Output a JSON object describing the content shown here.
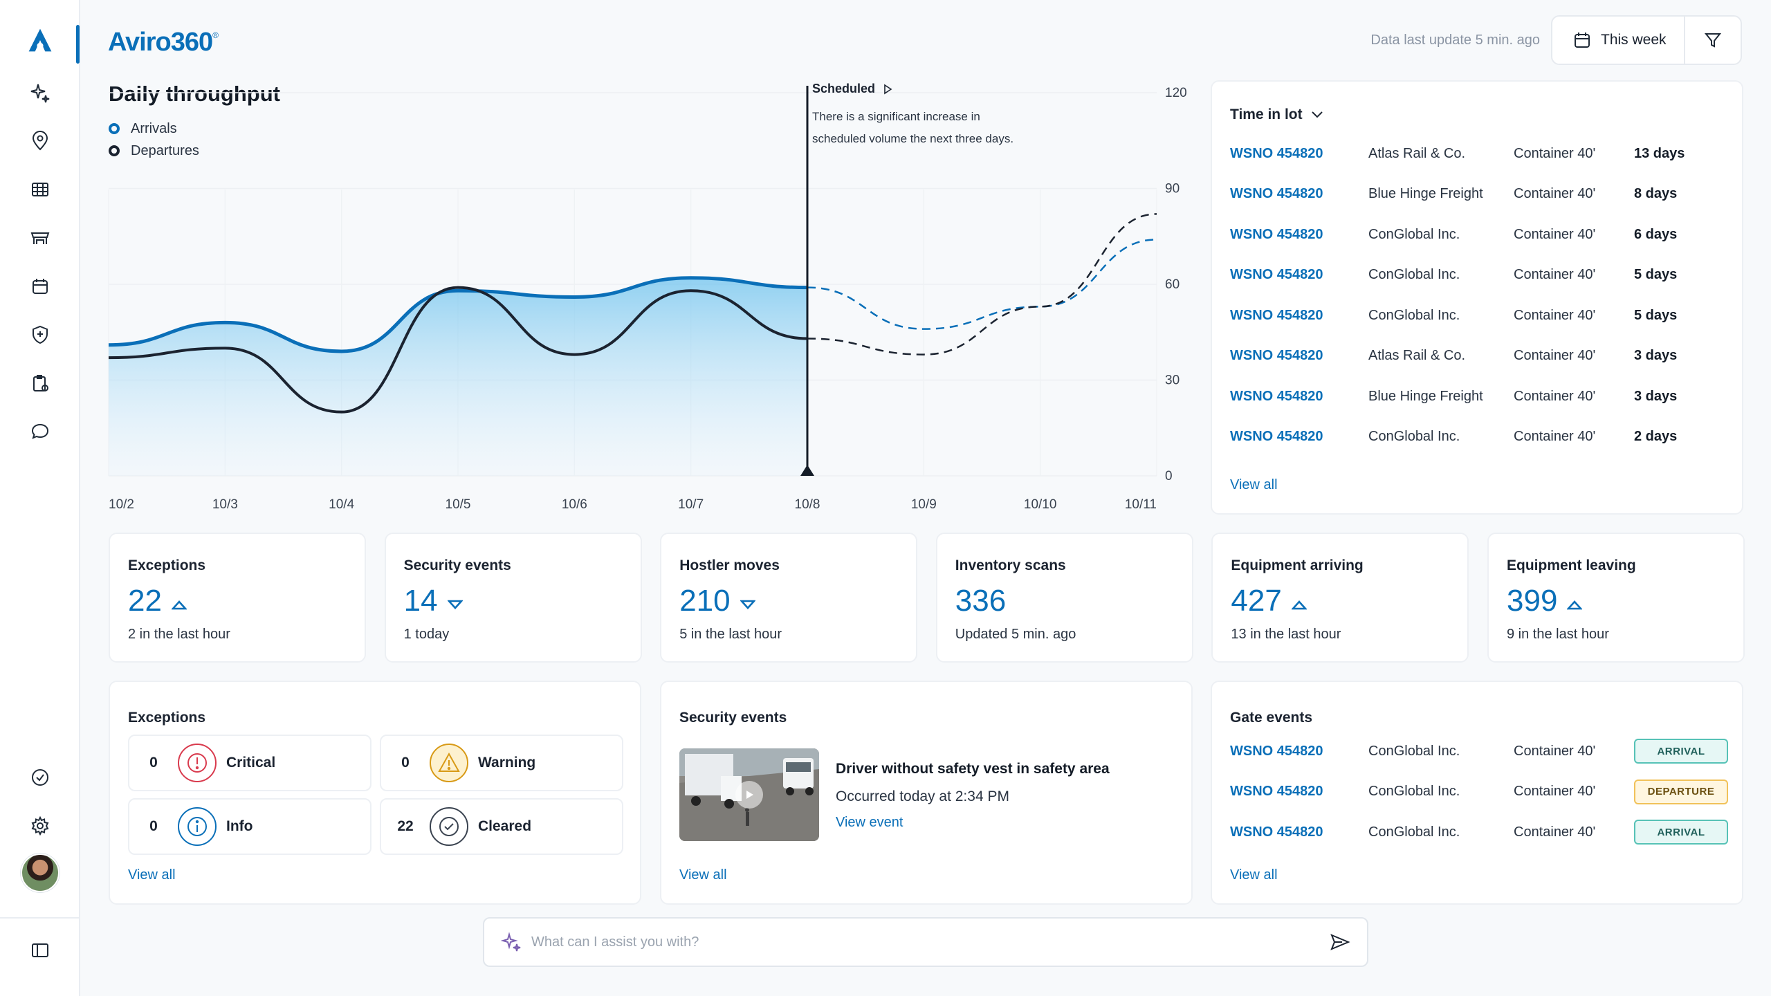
{
  "brand": {
    "name": "Aviro360",
    "mark": "®"
  },
  "header": {
    "last_update": "Data last update 5 min. ago",
    "period_label": "This week"
  },
  "sidebar": {
    "icons": [
      "logo-icon",
      "sparkle-icon",
      "location-pin-icon",
      "table-icon",
      "warehouse-icon",
      "calendar-icon",
      "shield-icon",
      "clipboard-icon",
      "chat-icon",
      "check-circle-icon",
      "settings-icon",
      "sidebar-toggle-icon"
    ],
    "accent": "#0a6fb8"
  },
  "throughput": {
    "title": "Daily throughput",
    "legend": [
      "Arrivals",
      "Departures"
    ],
    "note_title": "Scheduled",
    "note_text_1": "There is a significant increase in",
    "note_text_2": "scheduled volume  the next three days."
  },
  "chart_data": {
    "type": "line",
    "x": [
      "10/2",
      "10/3",
      "10/4",
      "10/5",
      "10/6",
      "10/7",
      "10/8",
      "10/9",
      "10/10",
      "10/11"
    ],
    "ylim": [
      0,
      120
    ],
    "yticks": [
      0,
      30,
      60,
      90,
      120
    ],
    "scheduled_from": "10/8",
    "series": [
      {
        "name": "Arrivals",
        "color": "#0a6fb8",
        "area": true,
        "values": [
          41,
          48,
          39,
          58,
          56,
          62,
          59,
          46,
          53,
          74
        ],
        "dashed_from_index": 6
      },
      {
        "name": "Departures",
        "color": "#1b2330",
        "area": false,
        "values": [
          37,
          40,
          20,
          59,
          38,
          58,
          43,
          38,
          53,
          82
        ],
        "dashed_from_index": 6
      }
    ]
  },
  "time_in_lot": {
    "title": "Time in lot",
    "rows": [
      {
        "id": "WSNO 454820",
        "company": "Atlas Rail & Co.",
        "type": "Container 40'",
        "days": "13 days"
      },
      {
        "id": "WSNO 454820",
        "company": "Blue Hinge Freight",
        "type": "Container 40'",
        "days": "8 days"
      },
      {
        "id": "WSNO 454820",
        "company": "ConGlobal Inc.",
        "type": "Container 40'",
        "days": "6 days"
      },
      {
        "id": "WSNO 454820",
        "company": "ConGlobal Inc.",
        "type": "Container 40'",
        "days": "5 days"
      },
      {
        "id": "WSNO 454820",
        "company": "ConGlobal Inc.",
        "type": "Container 40'",
        "days": "5 days"
      },
      {
        "id": "WSNO 454820",
        "company": "Atlas Rail & Co.",
        "type": "Container 40'",
        "days": "3 days"
      },
      {
        "id": "WSNO 454820",
        "company": "Blue Hinge Freight",
        "type": "Container 40'",
        "days": "3 days"
      },
      {
        "id": "WSNO 454820",
        "company": "ConGlobal Inc.",
        "type": "Container 40'",
        "days": "2 days"
      }
    ],
    "view_all": "View all"
  },
  "kpis": [
    {
      "label": "Exceptions",
      "value": "22",
      "trend": "up",
      "sub": "2 in the last hour"
    },
    {
      "label": "Security events",
      "value": "14",
      "trend": "down",
      "sub": "1 today"
    },
    {
      "label": "Hostler moves",
      "value": "210",
      "trend": "down",
      "sub": "5 in the last hour"
    },
    {
      "label": "Inventory scans",
      "value": "336",
      "trend": "none",
      "sub": "Updated 5 min. ago"
    },
    {
      "label": "Equipment arriving",
      "value": "427",
      "trend": "up",
      "sub": "13 in the last hour"
    },
    {
      "label": "Equipment leaving",
      "value": "399",
      "trend": "up",
      "sub": "9 in the last hour"
    }
  ],
  "exceptions": {
    "title": "Exceptions",
    "items": [
      {
        "count": "0",
        "label": "Critical",
        "icon": "alert-circle-icon",
        "color": "#d93b4e"
      },
      {
        "count": "0",
        "label": "Warning",
        "icon": "warning-triangle-icon",
        "color": "#d89a16"
      },
      {
        "count": "0",
        "label": "Info",
        "icon": "info-circle-icon",
        "color": "#0a6fb8"
      },
      {
        "count": "22",
        "label": "Cleared",
        "icon": "check-circle-icon",
        "color": "#3a4350"
      }
    ],
    "view_all": "View all"
  },
  "security_events": {
    "title": "Security events",
    "event_title": "Driver without safety vest in safety area",
    "event_time": "Occurred today at 2:34 PM",
    "event_link": "View event",
    "view_all": "View all"
  },
  "gate_events": {
    "title": "Gate events",
    "rows": [
      {
        "id": "WSNO 454820",
        "company": "ConGlobal Inc.",
        "type": "Container 40'",
        "status": "ARRIVAL"
      },
      {
        "id": "WSNO 454820",
        "company": "ConGlobal Inc.",
        "type": "Container 40'",
        "status": "DEPARTURE"
      },
      {
        "id": "WSNO 454820",
        "company": "ConGlobal Inc.",
        "type": "Container 40'",
        "status": "ARRIVAL"
      }
    ],
    "view_all": "View all"
  },
  "assistant": {
    "placeholder": "What can I assist you with?"
  }
}
